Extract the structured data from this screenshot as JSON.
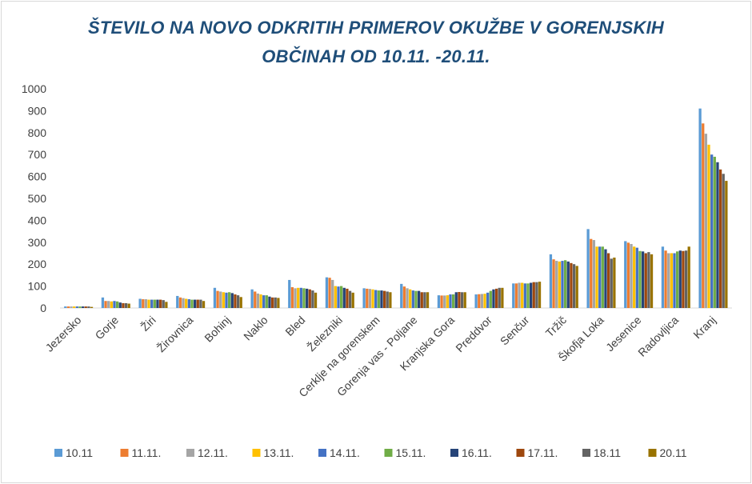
{
  "chart_data": {
    "type": "bar",
    "title_line1": "ŠTEVILO NA NOVO ODKRITIH PRIMEROV OKUŽBE V GORENJSKIH",
    "title_line2": "OBČINAH OD 10.11. -20.11.",
    "xlabel": "",
    "ylabel": "",
    "ylim": [
      0,
      1000
    ],
    "yticks": [
      "0",
      "100",
      "200",
      "300",
      "400",
      "500",
      "600",
      "700",
      "800",
      "900",
      "1000"
    ],
    "grid": false,
    "legend_position": "bottom",
    "categories": [
      "Jezersko",
      "Gorje",
      "Žiri",
      "Žirovnica",
      "Bohinj",
      "Naklo",
      "Bled",
      "Železniki",
      "Cerklje na gorenskem",
      "Gorenja vas - Poljane",
      "Kranjska Gora",
      "Preddvor",
      "Senčur",
      "Tržič",
      "Škofja Loka",
      "Jesenice",
      "Radovljica",
      "Kranj"
    ],
    "series": [
      {
        "name": "10.11",
        "color": "#5b9bd5",
        "values": [
          7,
          48,
          42,
          55,
          92,
          85,
          128,
          140,
          90,
          110,
          58,
          62,
          112,
          245,
          360,
          305,
          280,
          910
        ]
      },
      {
        "name": "11.11.",
        "color": "#ed7d31",
        "values": [
          7,
          32,
          40,
          48,
          78,
          75,
          95,
          138,
          88,
          98,
          57,
          63,
          112,
          222,
          315,
          298,
          262,
          842
        ]
      },
      {
        "name": "12.11.",
        "color": "#a5a5a5",
        "values": [
          7,
          32,
          40,
          45,
          75,
          66,
          90,
          128,
          87,
          90,
          57,
          64,
          115,
          215,
          310,
          292,
          250,
          795
        ]
      },
      {
        "name": "13.11.",
        "color": "#ffc000",
        "values": [
          7,
          30,
          38,
          42,
          72,
          62,
          92,
          100,
          85,
          85,
          58,
          65,
          115,
          212,
          280,
          280,
          250,
          745
        ]
      },
      {
        "name": "14.11.",
        "color": "#4472c4",
        "values": [
          7,
          32,
          38,
          40,
          70,
          58,
          92,
          98,
          82,
          80,
          62,
          70,
          112,
          215,
          280,
          275,
          250,
          700
        ]
      },
      {
        "name": "15.11.",
        "color": "#70ad47",
        "values": [
          7,
          30,
          38,
          38,
          72,
          58,
          90,
          100,
          80,
          78,
          62,
          78,
          112,
          218,
          280,
          260,
          258,
          690
        ]
      },
      {
        "name": "16.11.",
        "color": "#264478",
        "values": [
          7,
          25,
          38,
          38,
          68,
          52,
          88,
          92,
          80,
          78,
          72,
          85,
          115,
          212,
          268,
          258,
          262,
          665
        ]
      },
      {
        "name": "17.11.",
        "color": "#9e480e",
        "values": [
          7,
          22,
          38,
          38,
          62,
          48,
          85,
          88,
          78,
          72,
          73,
          88,
          118,
          205,
          250,
          250,
          260,
          632
        ]
      },
      {
        "name": "18.11",
        "color": "#636363",
        "values": [
          7,
          22,
          36,
          38,
          58,
          48,
          80,
          78,
          75,
          72,
          72,
          92,
          118,
          200,
          225,
          255,
          262,
          612
        ]
      },
      {
        "name": "20.11",
        "color": "#997300",
        "values": [
          5,
          20,
          28,
          32,
          50,
          46,
          70,
          70,
          72,
          72,
          72,
          92,
          120,
          192,
          230,
          245,
          280,
          580
        ]
      }
    ]
  }
}
